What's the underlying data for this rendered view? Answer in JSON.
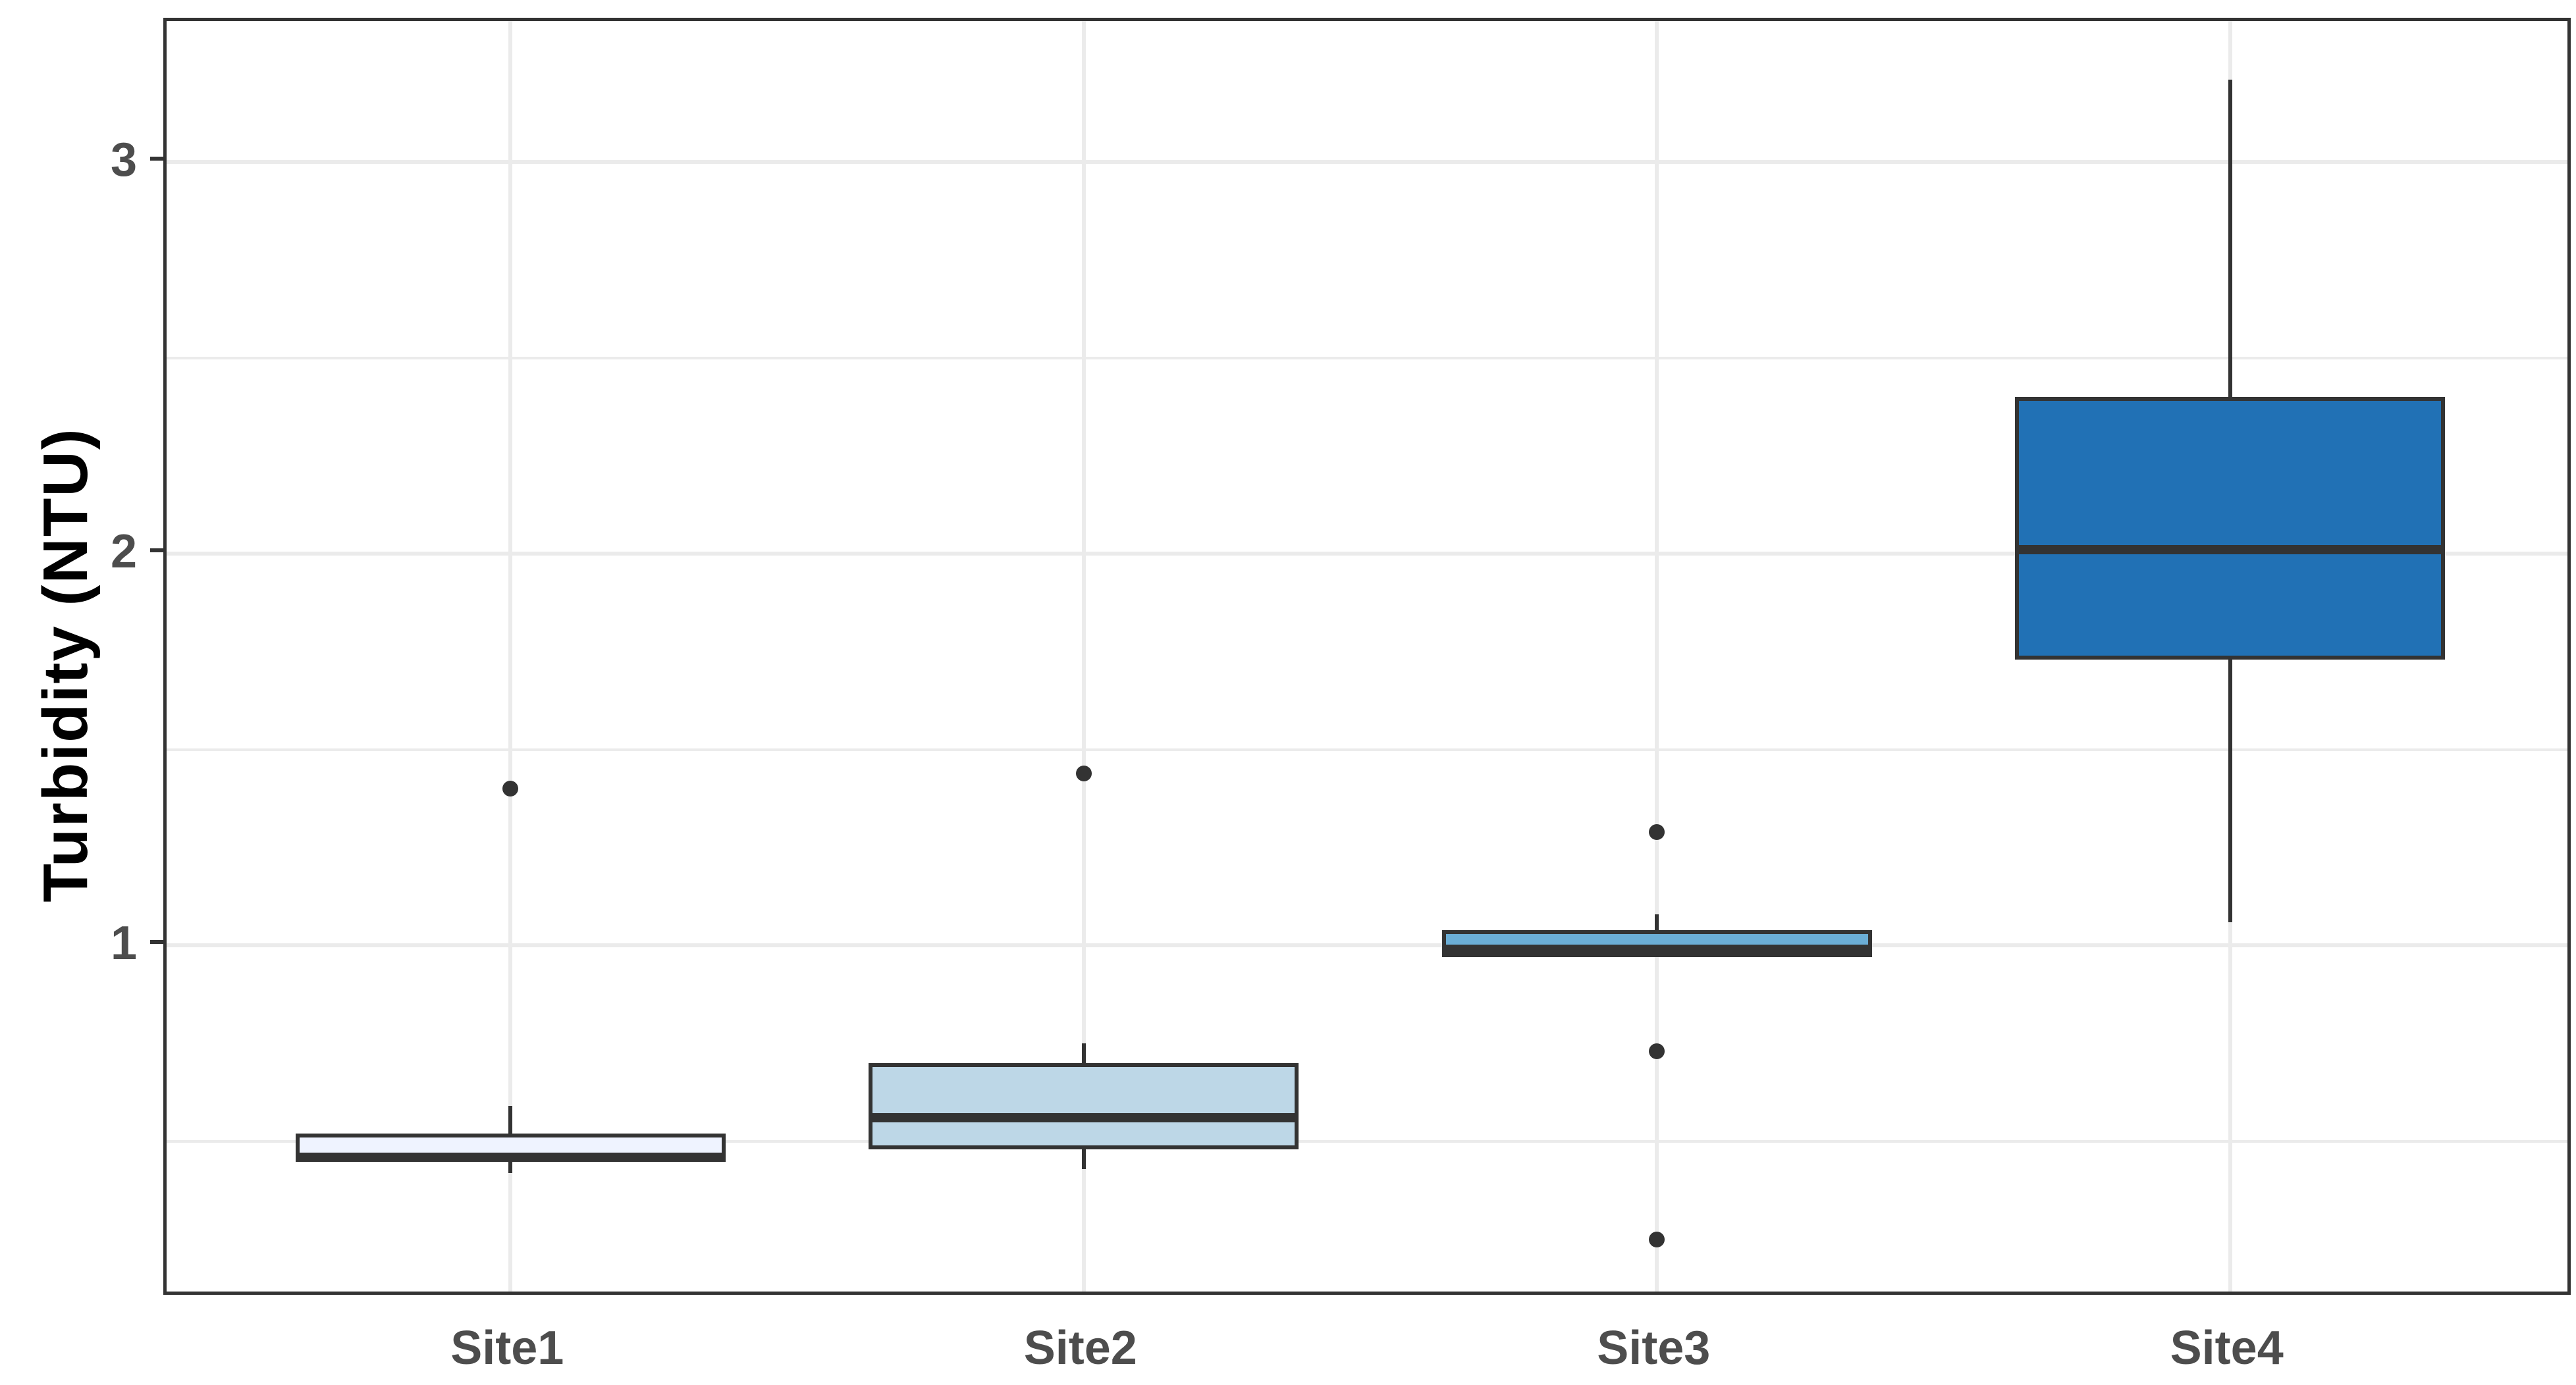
{
  "chart_data": {
    "type": "boxplot",
    "title": "",
    "xlabel": "",
    "ylabel": "Turbidity (NTU)",
    "categories": [
      "Site1",
      "Site2",
      "Site3",
      "Site4"
    ],
    "series": [
      {
        "name": "Site1",
        "min": 0.42,
        "q1": 0.45,
        "median": 0.46,
        "q3": 0.52,
        "max": 0.59,
        "outliers": [
          1.4
        ],
        "fill": "#EFF3FF"
      },
      {
        "name": "Site2",
        "min": 0.43,
        "q1": 0.48,
        "median": 0.56,
        "q3": 0.7,
        "max": 0.75,
        "outliers": [
          1.44
        ],
        "fill": "#BDD7E7"
      },
      {
        "name": "Site3",
        "min": 0.97,
        "q1": 0.97,
        "median": 0.99,
        "q3": 1.04,
        "max": 1.08,
        "outliers": [
          1.29,
          0.73,
          0.25
        ],
        "fill": "#6BAED6"
      },
      {
        "name": "Site4",
        "min": 1.06,
        "q1": 1.73,
        "median": 2.01,
        "q3": 2.4,
        "max": 3.21,
        "outliers": [],
        "fill": "#2171B5"
      }
    ],
    "y_axis": {
      "tick_labels": [
        "1",
        "2",
        "3"
      ],
      "tick_values": [
        1,
        2,
        3
      ],
      "minor_gridline_values": [
        0.5,
        1.5,
        2.5
      ],
      "ylim": [
        0.1,
        3.36
      ]
    },
    "grid": "on",
    "legend": "none",
    "style": {
      "line_color": "#333333",
      "gridline_color": "#ebebeb",
      "tick_label_color": "#4d4d4d",
      "axis_title_color": "#000000",
      "panel_background": "#ffffff"
    }
  }
}
